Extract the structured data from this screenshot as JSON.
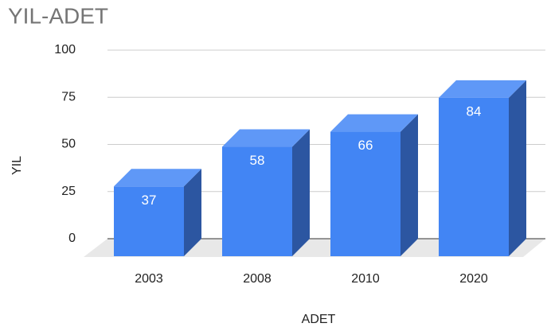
{
  "chart_data": {
    "type": "bar3d",
    "title": "YIL-ADET",
    "x_label": "ADET",
    "y_label": "YIL",
    "categories": [
      "2003",
      "2008",
      "2010",
      "2020"
    ],
    "values": [
      37,
      58,
      66,
      84
    ],
    "color": "#4285f4",
    "ylim": [
      0,
      100
    ],
    "yticks": [
      0,
      25,
      50,
      75,
      100
    ],
    "grid": true
  }
}
